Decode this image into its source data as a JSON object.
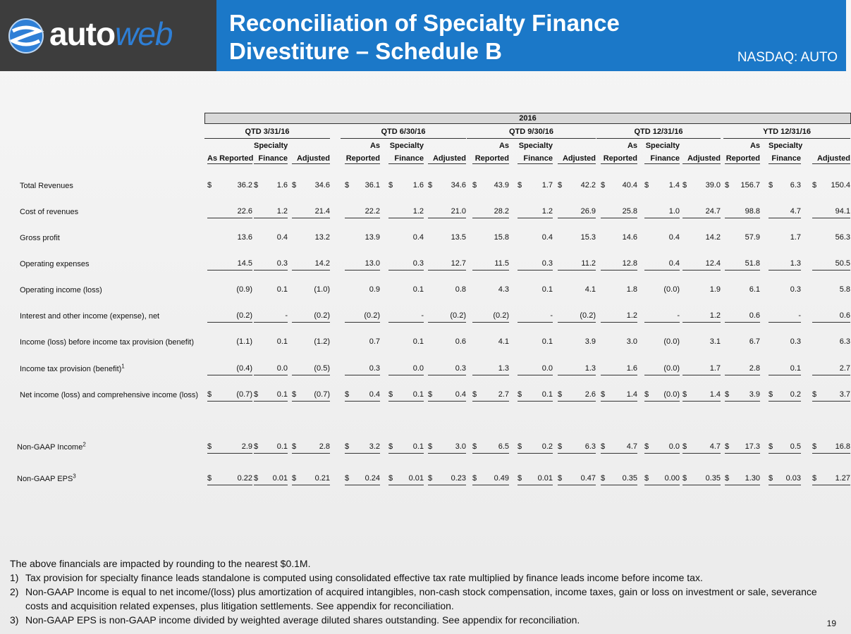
{
  "header": {
    "logo_text_auto": "auto",
    "logo_text_web": "web",
    "title_line1": "Reconciliation of Specialty Finance",
    "title_line2": "Divestiture – Schedule B",
    "ticker": "NASDAQ: AUTO",
    "colors": {
      "logo_bg": "#3d3d3d",
      "title_bg": "#1b78c8",
      "logo_accent": "#2e7fd6"
    }
  },
  "table": {
    "year": "2016",
    "periods": [
      {
        "label": "QTD 3/31/16",
        "cols": [
          [
            "",
            "As Reported"
          ],
          [
            "Specialty",
            "Finance"
          ],
          [
            "",
            "Adjusted"
          ]
        ]
      },
      {
        "label": "QTD 6/30/16",
        "cols": [
          [
            "As",
            "Reported"
          ],
          [
            "Specialty",
            "Finance"
          ],
          [
            "",
            "Adjusted"
          ]
        ]
      },
      {
        "label": "QTD 9/30/16",
        "cols": [
          [
            "As",
            "Reported"
          ],
          [
            "Specialty",
            "Finance"
          ],
          [
            "",
            "Adjusted"
          ]
        ]
      },
      {
        "label": "QTD 12/31/16",
        "cols": [
          [
            "As",
            "Reported"
          ],
          [
            "Specialty",
            "Finance"
          ],
          [
            "",
            "Adjusted"
          ]
        ]
      },
      {
        "label": "YTD 12/31/16",
        "cols": [
          [
            "As",
            "Reported"
          ],
          [
            "Specialty",
            "Finance"
          ],
          [
            "",
            "Adjusted"
          ]
        ]
      }
    ],
    "rows": [
      {
        "label": "Total Revenues",
        "dollar": true,
        "underline": false,
        "values": [
          "36.2",
          "1.6",
          "34.6",
          "36.1",
          "1.6",
          "34.6",
          "43.9",
          "1.7",
          "42.2",
          "40.4",
          "1.4",
          "39.0",
          "156.7",
          "6.3",
          "150.4"
        ]
      },
      {
        "label": "Cost of revenues",
        "dollar": false,
        "underline": true,
        "values": [
          "22.6",
          "1.2",
          "21.4",
          "22.2",
          "1.2",
          "21.0",
          "28.2",
          "1.2",
          "26.9",
          "25.8",
          "1.0",
          "24.7",
          "98.8",
          "4.7",
          "94.1"
        ]
      },
      {
        "label": "Gross profit",
        "dollar": false,
        "underline": false,
        "values": [
          "13.6",
          "0.4",
          "13.2",
          "13.9",
          "0.4",
          "13.5",
          "15.8",
          "0.4",
          "15.3",
          "14.6",
          "0.4",
          "14.2",
          "57.9",
          "1.7",
          "56.3"
        ]
      },
      {
        "label": "Operating expenses",
        "dollar": false,
        "underline": true,
        "values": [
          "14.5",
          "0.3",
          "14.2",
          "13.0",
          "0.3",
          "12.7",
          "11.5",
          "0.3",
          "11.2",
          "12.8",
          "0.4",
          "12.4",
          "51.8",
          "1.3",
          "50.5"
        ]
      },
      {
        "label": "Operating income (loss)",
        "dollar": false,
        "underline": false,
        "values": [
          "(0.9)",
          "0.1",
          "(1.0)",
          "0.9",
          "0.1",
          "0.8",
          "4.3",
          "0.1",
          "4.1",
          "1.8",
          "(0.0)",
          "1.9",
          "6.1",
          "0.3",
          "5.8"
        ]
      },
      {
        "label": "Interest and other income (expense), net",
        "dollar": false,
        "underline": true,
        "values": [
          "(0.2)",
          "-",
          "(0.2)",
          "(0.2)",
          "-",
          "(0.2)",
          "(0.2)",
          "-",
          "(0.2)",
          "1.2",
          "-",
          "1.2",
          "0.6",
          "-",
          "0.6"
        ]
      },
      {
        "label": "Income (loss) before income tax provision (benefit)",
        "dollar": false,
        "underline": false,
        "values": [
          "(1.1)",
          "0.1",
          "(1.2)",
          "0.7",
          "0.1",
          "0.6",
          "4.1",
          "0.1",
          "3.9",
          "3.0",
          "(0.0)",
          "3.1",
          "6.7",
          "0.3",
          "6.3"
        ]
      },
      {
        "label": "Income tax provision (benefit)",
        "sup": "1",
        "dollar": false,
        "underline": true,
        "values": [
          "(0.4)",
          "0.0",
          "(0.5)",
          "0.3",
          "0.0",
          "0.3",
          "1.3",
          "0.0",
          "1.3",
          "1.6",
          "(0.0)",
          "1.7",
          "2.8",
          "0.1",
          "2.7"
        ]
      },
      {
        "label": "Net income (loss)  and comprehensive income (loss)",
        "dollar": true,
        "underline": true,
        "values": [
          "(0.7)",
          "0.1",
          "(0.7)",
          "0.4",
          "0.1",
          "0.4",
          "2.7",
          "0.1",
          "2.6",
          "1.4",
          "(0.0)",
          "1.4",
          "3.9",
          "0.2",
          "3.7"
        ]
      },
      {
        "label": "Non-GAAP Income",
        "sup": "2",
        "dollar": true,
        "underline": true,
        "nongaap": true,
        "values": [
          "2.9",
          "0.1",
          "2.8",
          "3.2",
          "0.1",
          "3.0",
          "6.5",
          "0.2",
          "6.3",
          "4.7",
          "0.0",
          "4.7",
          "17.3",
          "0.5",
          "16.8"
        ]
      },
      {
        "label": "Non-GAAP EPS",
        "sup": "3",
        "dollar": true,
        "underline": true,
        "nongaap": true,
        "values": [
          "0.22",
          "0.01",
          "0.21",
          "0.24",
          "0.01",
          "0.23",
          "0.49",
          "0.01",
          "0.47",
          "0.35",
          "0.00",
          "0.35",
          "1.30",
          "0.03",
          "1.27"
        ]
      }
    ],
    "dollar_sign": "$"
  },
  "notes": {
    "intro": "The above financials are impacted by rounding to the nearest $0.1M.",
    "items": [
      {
        "num": "1)",
        "text": "Tax provision for specialty finance leads standalone is computed using consolidated effective tax rate multiplied by finance leads income before income tax."
      },
      {
        "num": "2)",
        "text": "Non-GAAP Income is equal to net income/(loss) plus amortization of acquired intangibles, non-cash stock compensation, income taxes, gain or loss on investment or sale, severance costs and acquisition related expenses, plus litigation settlements. See appendix for reconciliation."
      },
      {
        "num": "3)",
        "text": "Non-GAAP EPS is non-GAAP income divided by weighted average diluted shares outstanding. See appendix for reconciliation."
      }
    ]
  },
  "page_number": "19"
}
